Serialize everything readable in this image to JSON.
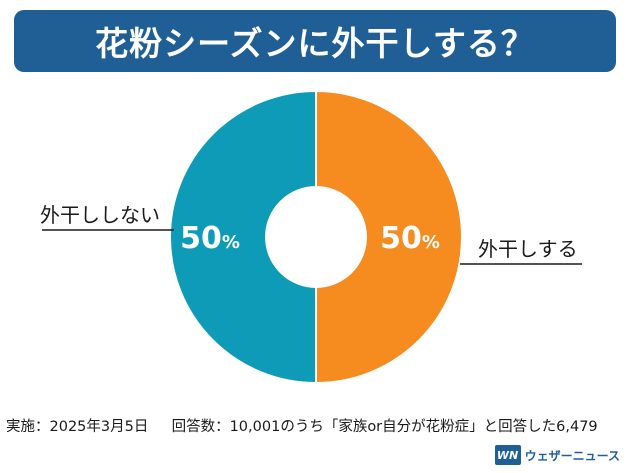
{
  "title": "花粉シーズンに外干しする？",
  "chart_data": {
    "type": "pie",
    "donut": true,
    "categories": [
      "外干しする",
      "外干ししない"
    ],
    "values": [
      50,
      50
    ],
    "value_labels": [
      "50%",
      "50%"
    ],
    "colors": [
      "#f68b1f",
      "#0e9bb8"
    ],
    "legend": "outside-labels"
  },
  "footer": {
    "survey_date": "実施：2025年3月5日",
    "respondents": "回答数：10,001のうち「家族or自分が花粉症」と回答した6,479"
  },
  "brand": {
    "logo_text": "WN",
    "name": "ウェザーニュース"
  }
}
